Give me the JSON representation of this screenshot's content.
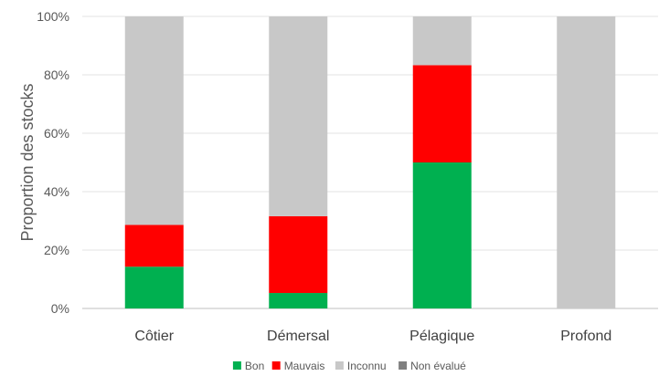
{
  "chart_data": {
    "type": "bar",
    "stacked": true,
    "categories": [
      "Côtier",
      "Démersal",
      "Pélagique",
      "Profond"
    ],
    "series": [
      {
        "name": "Bon",
        "color": "#00b050",
        "values": [
          14.3,
          5.3,
          50,
          0
        ]
      },
      {
        "name": "Mauvais",
        "color": "#ff0000",
        "values": [
          14.3,
          26.3,
          33.3,
          0
        ]
      },
      {
        "name": "Inconnu",
        "color": "#c8c8c8",
        "values": [
          71.4,
          68.4,
          16.7,
          100
        ]
      },
      {
        "name": "Non évalué",
        "color": "#7f7f7f",
        "values": [
          0,
          0,
          0,
          0
        ]
      }
    ],
    "ylabel": "Proportion des stocks",
    "ylim": [
      0,
      100
    ],
    "yticks": [
      "0%",
      "20%",
      "40%",
      "60%",
      "80%",
      "100%"
    ],
    "grid": true,
    "legend_position": "bottom"
  }
}
